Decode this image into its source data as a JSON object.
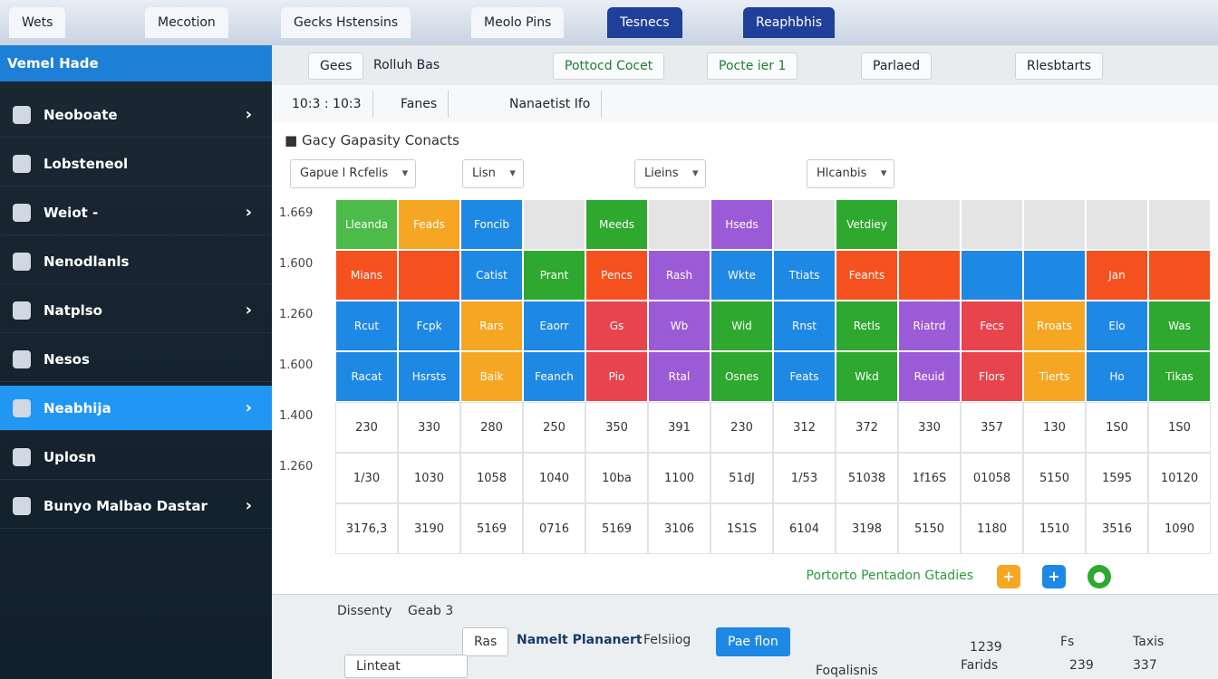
{
  "browser": {
    "tabs": [
      "Wets",
      "Mecotion",
      "Gecks Hstensins",
      "Meolo Pins",
      "Tesnecs",
      "Reaphbhis"
    ]
  },
  "sidebar": {
    "title": "Vemel Hade",
    "items": [
      "Neoboate",
      "Lobsteneol",
      "Weiot -",
      "Nenodlanls",
      "Natplso",
      "Nesos",
      "Neabhija",
      "Uplosn",
      "Bunyo Malbao Dastar"
    ],
    "active": 6
  },
  "toolbar": {
    "search": "Gees",
    "breadcrumb": "Rolluh Bas",
    "tabs": [
      "Pottocd Cocet",
      "Pocte ier 1",
      "Parlaed",
      "Rlesbtarts"
    ]
  },
  "subtabs": [
    "10:3 : 10:3",
    "Fanes",
    "Nanaetist Ifo"
  ],
  "panel": {
    "title": "Gacy Gapasity Conacts",
    "filters": [
      "Gapue l Rcfelis",
      "Lisn",
      "Lieins",
      "Hlcanbis"
    ],
    "row_labels": [
      "1.669",
      "1.600",
      "1.260",
      "1.600",
      "1.400",
      "1.260"
    ],
    "rows": [
      [
        {
          "label": "Lleanda",
          "color": "#4cbb4a"
        },
        {
          "label": "Feads",
          "color": "#f5a623"
        },
        {
          "label": "Foncib",
          "color": "#1e88e5"
        },
        {
          "color": "#e4e4e4"
        },
        {
          "label": "Meeds",
          "color": "#2ea82e"
        },
        {
          "color": "#e4e4e4"
        },
        {
          "label": "Hseds",
          "color": "#9c5bd6"
        },
        {
          "color": "#e4e4e4"
        },
        {
          "label": "Vetdiey",
          "color": "#2ea82e"
        },
        {
          "color": "#e4e4e4"
        },
        {
          "color": "#e4e4e4"
        },
        {
          "color": "#e4e4e4"
        },
        {
          "color": "#e4e4e4"
        },
        {
          "color": "#e4e4e4"
        }
      ],
      [
        {
          "label": "Mians",
          "color": "#f4511e"
        },
        {
          "color": "#f4511e"
        },
        {
          "label": "Catist",
          "color": "#1e88e5"
        },
        {
          "label": "Prant",
          "color": "#2ea82e"
        },
        {
          "label": "Pencs",
          "color": "#f4511e"
        },
        {
          "label": "Rash",
          "color": "#9c5bd6"
        },
        {
          "label": "Wkte",
          "color": "#1e88e5"
        },
        {
          "label": "Ttiats",
          "color": "#1e88e5"
        },
        {
          "label": "Feants",
          "color": "#f4511e"
        },
        {
          "color": "#f4511e"
        },
        {
          "color": "#1e88e5"
        },
        {
          "color": "#1e88e5"
        },
        {
          "label": "Jan",
          "color": "#f4511e"
        },
        {
          "color": "#f4511e"
        }
      ],
      [
        {
          "label": "Rcut",
          "color": "#1e88e5"
        },
        {
          "label": "Fcpk",
          "color": "#1e88e5"
        },
        {
          "label": "Rars",
          "color": "#f5a623"
        },
        {
          "label": "Eaorr",
          "color": "#1e88e5"
        },
        {
          "label": "Gs",
          "color": "#e8444e"
        },
        {
          "label": "Wb",
          "color": "#9c5bd6"
        },
        {
          "label": "Wid",
          "color": "#2ea82e"
        },
        {
          "label": "Rnst",
          "color": "#1e88e5"
        },
        {
          "label": "Retls",
          "color": "#2ea82e"
        },
        {
          "label": "Riatrd",
          "color": "#9c5bd6"
        },
        {
          "label": "Fecs",
          "color": "#e8444e"
        },
        {
          "label": "Rroats",
          "color": "#f5a623"
        },
        {
          "label": "Elo",
          "color": "#1e88e5"
        },
        {
          "label": "Was",
          "color": "#2ea82e"
        }
      ],
      [
        {
          "label": "Racat",
          "color": "#1e88e5"
        },
        {
          "label": "Hsrsts",
          "color": "#1e88e5"
        },
        {
          "label": "Baik",
          "color": "#f5a623"
        },
        {
          "label": "Feanch",
          "color": "#1e88e5"
        },
        {
          "label": "Pio",
          "color": "#e8444e"
        },
        {
          "label": "Rtal",
          "color": "#9c5bd6"
        },
        {
          "label": "Osnes",
          "color": "#2ea82e"
        },
        {
          "label": "Feats",
          "color": "#1e88e5"
        },
        {
          "label": "Wkd",
          "color": "#2ea82e"
        },
        {
          "label": "Reuid",
          "color": "#9c5bd6"
        },
        {
          "label": "Flors",
          "color": "#e8444e"
        },
        {
          "label": "Tierts",
          "color": "#f5a623"
        },
        {
          "label": "Ho",
          "color": "#1e88e5"
        },
        {
          "label": "Tikas",
          "color": "#2ea82e"
        }
      ],
      [
        {
          "label": "230"
        },
        {
          "label": "330"
        },
        {
          "label": "280"
        },
        {
          "label": "250"
        },
        {
          "label": "350"
        },
        {
          "label": "391"
        },
        {
          "label": "230"
        },
        {
          "label": "312"
        },
        {
          "label": "372"
        },
        {
          "label": "330"
        },
        {
          "label": "357"
        },
        {
          "label": "130"
        },
        {
          "label": "1S0"
        },
        {
          "label": "1S0"
        }
      ],
      [
        {
          "label": "1/30"
        },
        {
          "label": "1030"
        },
        {
          "label": "1058"
        },
        {
          "label": "1040"
        },
        {
          "label": "10ba"
        },
        {
          "label": "1100"
        },
        {
          "label": "51dJ"
        },
        {
          "label": "1/53"
        },
        {
          "label": "51038"
        },
        {
          "label": "1f16S"
        },
        {
          "label": "01058"
        },
        {
          "label": "5150"
        },
        {
          "label": "1595"
        },
        {
          "label": "10120"
        }
      ],
      [
        {
          "label": "3176,3"
        },
        {
          "label": "3190"
        },
        {
          "label": "5169"
        },
        {
          "label": "0716"
        },
        {
          "label": "5169"
        },
        {
          "label": "3106"
        },
        {
          "label": "1S1S"
        },
        {
          "label": "6104"
        },
        {
          "label": "3198"
        },
        {
          "label": "5150"
        },
        {
          "label": "1180"
        },
        {
          "label": "1510"
        },
        {
          "label": "3516"
        },
        {
          "label": "1090"
        }
      ]
    ],
    "legend": "Portorto Pentadon Gtadies"
  },
  "bottom": {
    "label1": "Dissenty",
    "label2": "Geab 3",
    "button1": "Ras",
    "title": "Namelt Plananert",
    "tab": "Felsiiog",
    "primary": "Pae flon",
    "input": "Linteat",
    "col1": "Farids",
    "col2": "Foqalisnis",
    "col3": "Fs",
    "col4": "Taxis",
    "num1": "337",
    "num2": "1239",
    "num3": "239"
  }
}
